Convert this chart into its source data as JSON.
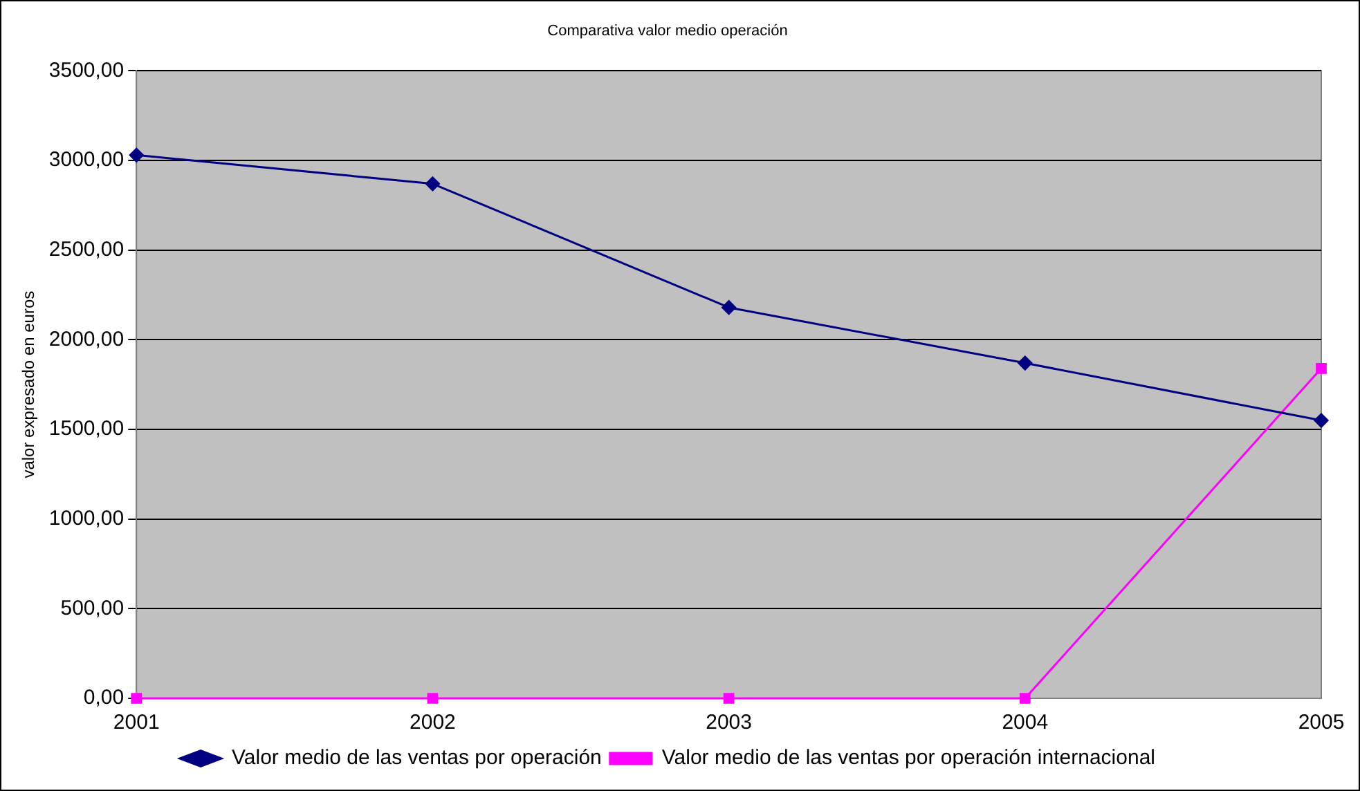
{
  "chart_data": {
    "type": "line",
    "title": "Comparativa valor medio operación",
    "ylabel": "valor expresado en euros",
    "categories": [
      "2001",
      "2002",
      "2003",
      "2004",
      "2005"
    ],
    "series": [
      {
        "name": "Valor medio de las ventas por operación",
        "color": "#000080",
        "marker": "diamond",
        "values": [
          3030,
          2870,
          2180,
          1870,
          1550
        ]
      },
      {
        "name": "Valor medio de las ventas por operación internacional",
        "color": "#ff00ff",
        "marker": "square",
        "values": [
          0,
          0,
          0,
          0,
          1840
        ]
      }
    ],
    "ylim": [
      0,
      3500
    ],
    "yticks": [
      {
        "value": 0,
        "label": "0,00"
      },
      {
        "value": 500,
        "label": "500,00"
      },
      {
        "value": 1000,
        "label": "1000,00"
      },
      {
        "value": 1500,
        "label": "1500,00"
      },
      {
        "value": 2000,
        "label": "2000,00"
      },
      {
        "value": 2500,
        "label": "2500,00"
      },
      {
        "value": 3000,
        "label": "3000,00"
      },
      {
        "value": 3500,
        "label": "3500,00"
      }
    ],
    "grid": "y",
    "legend": "bottom",
    "line_style": "solid"
  }
}
